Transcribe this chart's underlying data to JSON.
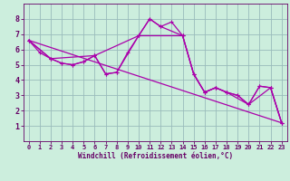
{
  "bg_color": "#cceedd",
  "grid_color": "#99bbbb",
  "line_color": "#aa00aa",
  "marker_color": "#aa00aa",
  "xlabel": "Windchill (Refroidissement éolien,°C)",
  "xlabel_color": "#660066",
  "tick_color": "#660066",
  "xlim": [
    -0.5,
    23.5
  ],
  "ylim": [
    0,
    9
  ],
  "xticks": [
    0,
    1,
    2,
    3,
    4,
    5,
    6,
    7,
    8,
    9,
    10,
    11,
    12,
    13,
    14,
    15,
    16,
    17,
    18,
    19,
    20,
    21,
    22,
    23
  ],
  "yticks": [
    1,
    2,
    3,
    4,
    5,
    6,
    7,
    8
  ],
  "line1_x": [
    0,
    1,
    2,
    3,
    4,
    5,
    6,
    7,
    8,
    9,
    10,
    11,
    12,
    13,
    14,
    15,
    16,
    17,
    18,
    19,
    20,
    21,
    22,
    23
  ],
  "line1_y": [
    6.6,
    5.8,
    5.4,
    5.1,
    5.0,
    5.2,
    5.6,
    4.4,
    4.5,
    5.8,
    6.9,
    8.0,
    7.5,
    7.8,
    6.9,
    4.4,
    3.2,
    3.5,
    3.2,
    3.0,
    2.4,
    3.6,
    3.5,
    1.2
  ],
  "line2_x": [
    0,
    2,
    3,
    4,
    5,
    6,
    10,
    11,
    12,
    14,
    15,
    16,
    17,
    18,
    19,
    20,
    21,
    22,
    23
  ],
  "line2_y": [
    6.6,
    5.4,
    5.1,
    5.0,
    5.2,
    5.6,
    6.9,
    8.0,
    7.5,
    6.9,
    4.4,
    3.2,
    3.5,
    3.2,
    3.0,
    2.4,
    3.6,
    3.5,
    1.2
  ],
  "line3_x": [
    0,
    23
  ],
  "line3_y": [
    6.6,
    1.2
  ],
  "line4_x": [
    0,
    2,
    6,
    7,
    8,
    10,
    14,
    15,
    16,
    17,
    18,
    20,
    22,
    23
  ],
  "line4_y": [
    6.6,
    5.4,
    5.6,
    4.4,
    4.5,
    6.9,
    6.9,
    4.4,
    3.2,
    3.5,
    3.2,
    2.4,
    3.5,
    1.2
  ]
}
